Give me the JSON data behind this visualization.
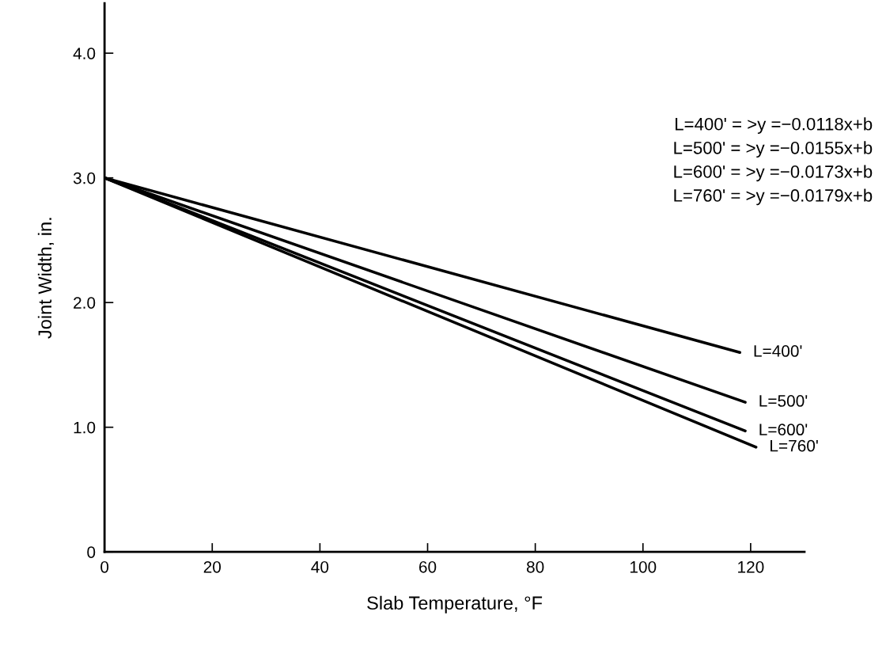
{
  "chart_data": {
    "type": "line",
    "xlabel": "Slab Temperature, °F",
    "ylabel": "Joint Width, in.",
    "series": [
      {
        "name": "L=400'",
        "color": "#000000",
        "x": [
          0,
          118
        ],
        "values": [
          3.0,
          1.6
        ]
      },
      {
        "name": "L=500'",
        "color": "#000000",
        "x": [
          0,
          119
        ],
        "values": [
          3.0,
          1.2
        ]
      },
      {
        "name": "L=600'",
        "color": "#000000",
        "x": [
          0,
          119
        ],
        "values": [
          3.0,
          0.97
        ]
      },
      {
        "name": "L=760'",
        "color": "#000000",
        "x": [
          0,
          121
        ],
        "values": [
          3.0,
          0.84
        ]
      }
    ],
    "annotations": [
      "L=400' = >y =−0.0118x+b",
      "L=500' = >y =−0.0155x+b",
      "L=600' = >y =−0.0173x+b",
      "L=760' = >y =−0.0179x+b"
    ],
    "xlim": [
      0,
      130
    ],
    "xticks": [
      0,
      20,
      40,
      60,
      80,
      100,
      120
    ],
    "ylim": [
      0,
      4.4
    ],
    "yticks": [
      0,
      {
        "value": 1,
        "label": "1.0"
      },
      {
        "value": 2,
        "label": "2.0"
      },
      {
        "value": 3,
        "label": "3.0"
      },
      {
        "value": 4,
        "label": "4.0"
      }
    ],
    "grid": false,
    "legend": false,
    "marker": "none",
    "line_style": "solid"
  }
}
